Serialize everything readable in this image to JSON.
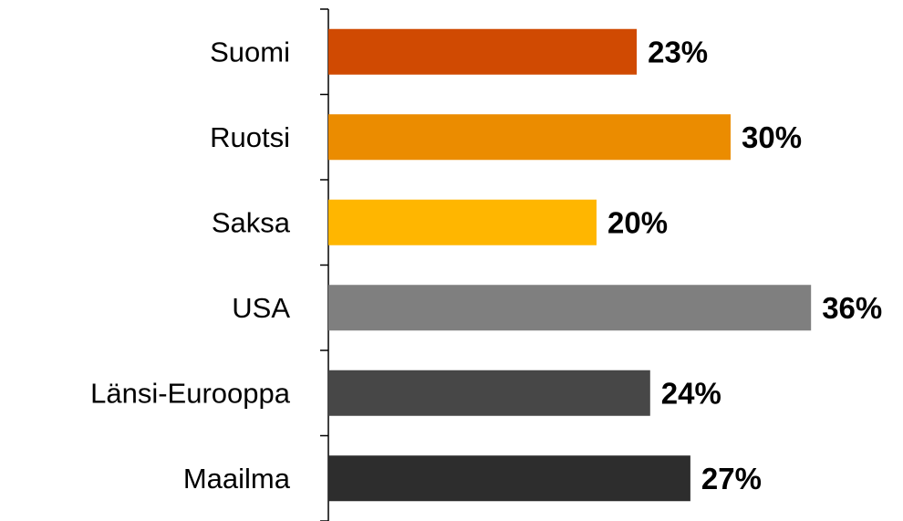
{
  "chart_data": {
    "type": "bar",
    "orientation": "horizontal",
    "categories": [
      "Suomi",
      "Ruotsi",
      "Saksa",
      "USA",
      "Länsi-Eurooppa",
      "Maailma"
    ],
    "values": [
      23,
      30,
      20,
      36,
      24,
      27
    ],
    "value_labels": [
      "23%",
      "30%",
      "20%",
      "36%",
      "24%",
      "27%"
    ],
    "colors": [
      "#d04a02",
      "#eb8c00",
      "#ffb600",
      "#7f7f7f",
      "#474747",
      "#2d2d2d"
    ]
  }
}
